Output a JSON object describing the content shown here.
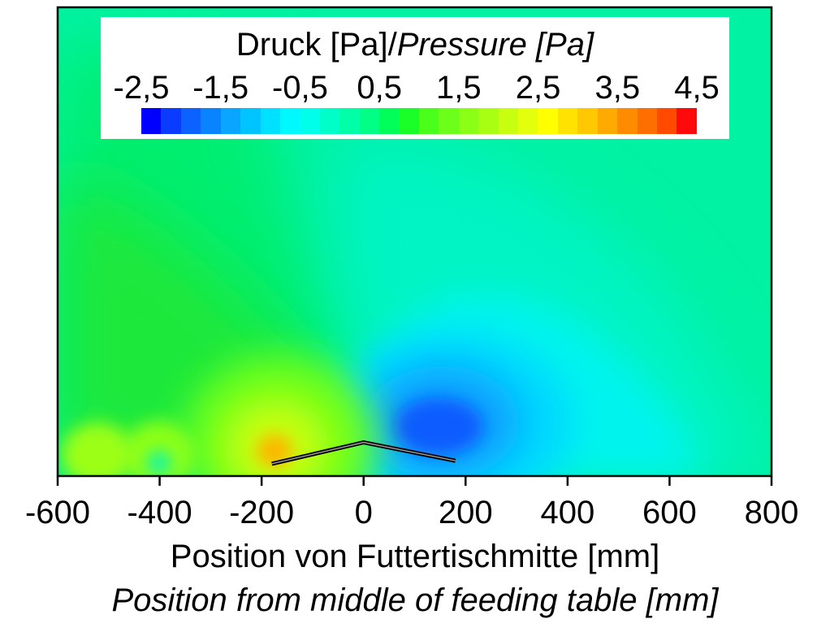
{
  "chart_data": {
    "type": "heatmap",
    "title": "",
    "xlabel": "Position von Futtertischmitte [mm]",
    "xlabel_en": "Position from middle of feeding table [mm]",
    "ylabel": "",
    "xlim": [
      -600,
      800
    ],
    "x_ticks": [
      "-600",
      "-400",
      "-200",
      "0",
      "200",
      "400",
      "600",
      "800"
    ],
    "x_tick_values": [
      -600,
      -400,
      -200,
      0,
      200,
      400,
      600,
      800
    ],
    "grid": false,
    "colorbar": {
      "title_de": "Druck [Pa]/",
      "title_en": "Pressure [Pa]",
      "placement": "top",
      "range": [
        -2.5,
        4.5
      ],
      "tick_labels": [
        "-2,5",
        "-1,5",
        "-0,5",
        "0,5",
        "1,5",
        "2,5",
        "3,5",
        "4,5"
      ],
      "tick_values": [
        -2.5,
        -1.5,
        -0.5,
        0.5,
        1.5,
        2.5,
        3.5,
        4.5
      ],
      "colors": [
        "#0000ff",
        "#0a3cff",
        "#0b62ff",
        "#0a83ff",
        "#0aa5ff",
        "#00c4ff",
        "#00e0ff",
        "#00f8ff",
        "#00ffea",
        "#00ffc8",
        "#00ffa6",
        "#00ff84",
        "#00ff58",
        "#1aff28",
        "#4aff1a",
        "#6cff1a",
        "#8cff16",
        "#a8ff12",
        "#c8ff10",
        "#e4ff0c",
        "#ffff00",
        "#ffe200",
        "#ffc800",
        "#ffaa00",
        "#ff8c00",
        "#ff6e00",
        "#ff4a00",
        "#ff0a0a"
      ]
    },
    "background_level": 0.45,
    "features": [
      {
        "kind": "low_pressure_region",
        "center_x": 200,
        "value": -2.0
      },
      {
        "kind": "high_pressure_region",
        "center_x": -180,
        "value": 3.5
      },
      {
        "kind": "elevated_pressure_region",
        "center_x": -330,
        "value": 1.8
      },
      {
        "kind": "elevated_pressure_region",
        "center_x": -420,
        "value": 2.0
      }
    ],
    "deflector_profile_x": [
      -180,
      0,
      180
    ],
    "deflector_profile_height_mm": [
      40,
      110,
      50
    ]
  }
}
